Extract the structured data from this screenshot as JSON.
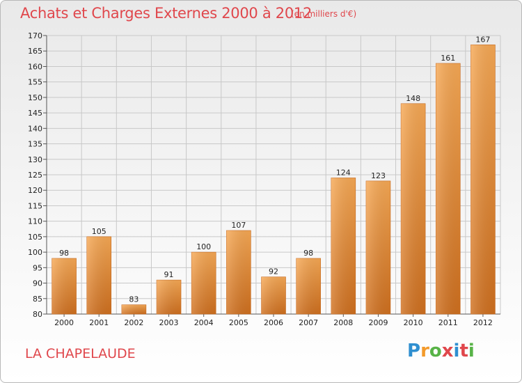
{
  "title": "Achats et Charges Externes 2000 à 2012",
  "subtitle": "(en milliers d'€)",
  "commune": "LA CHAPELAUDE",
  "logo": {
    "letters": [
      "P",
      "r",
      "o",
      "x",
      "i",
      "t",
      "i"
    ]
  },
  "colors": {
    "title": "#e0474c",
    "bar_light": "#f6a550",
    "bar_dark": "#d2701f",
    "grid": "#c8c8c8"
  },
  "chart_data": {
    "type": "bar",
    "title": "Achats et Charges Externes 2000 à 2012",
    "subtitle": "(en milliers d'€)",
    "categories": [
      "2000",
      "2001",
      "2002",
      "2003",
      "2004",
      "2005",
      "2006",
      "2007",
      "2008",
      "2009",
      "2010",
      "2011",
      "2012"
    ],
    "values": [
      98,
      105,
      83,
      91,
      100,
      107,
      92,
      98,
      124,
      123,
      148,
      161,
      167
    ],
    "ylim": [
      80,
      170
    ],
    "yticks": [
      80,
      85,
      90,
      95,
      100,
      105,
      110,
      115,
      120,
      125,
      130,
      135,
      140,
      145,
      150,
      155,
      160,
      165,
      170
    ],
    "grid": true,
    "data_labels": true
  }
}
